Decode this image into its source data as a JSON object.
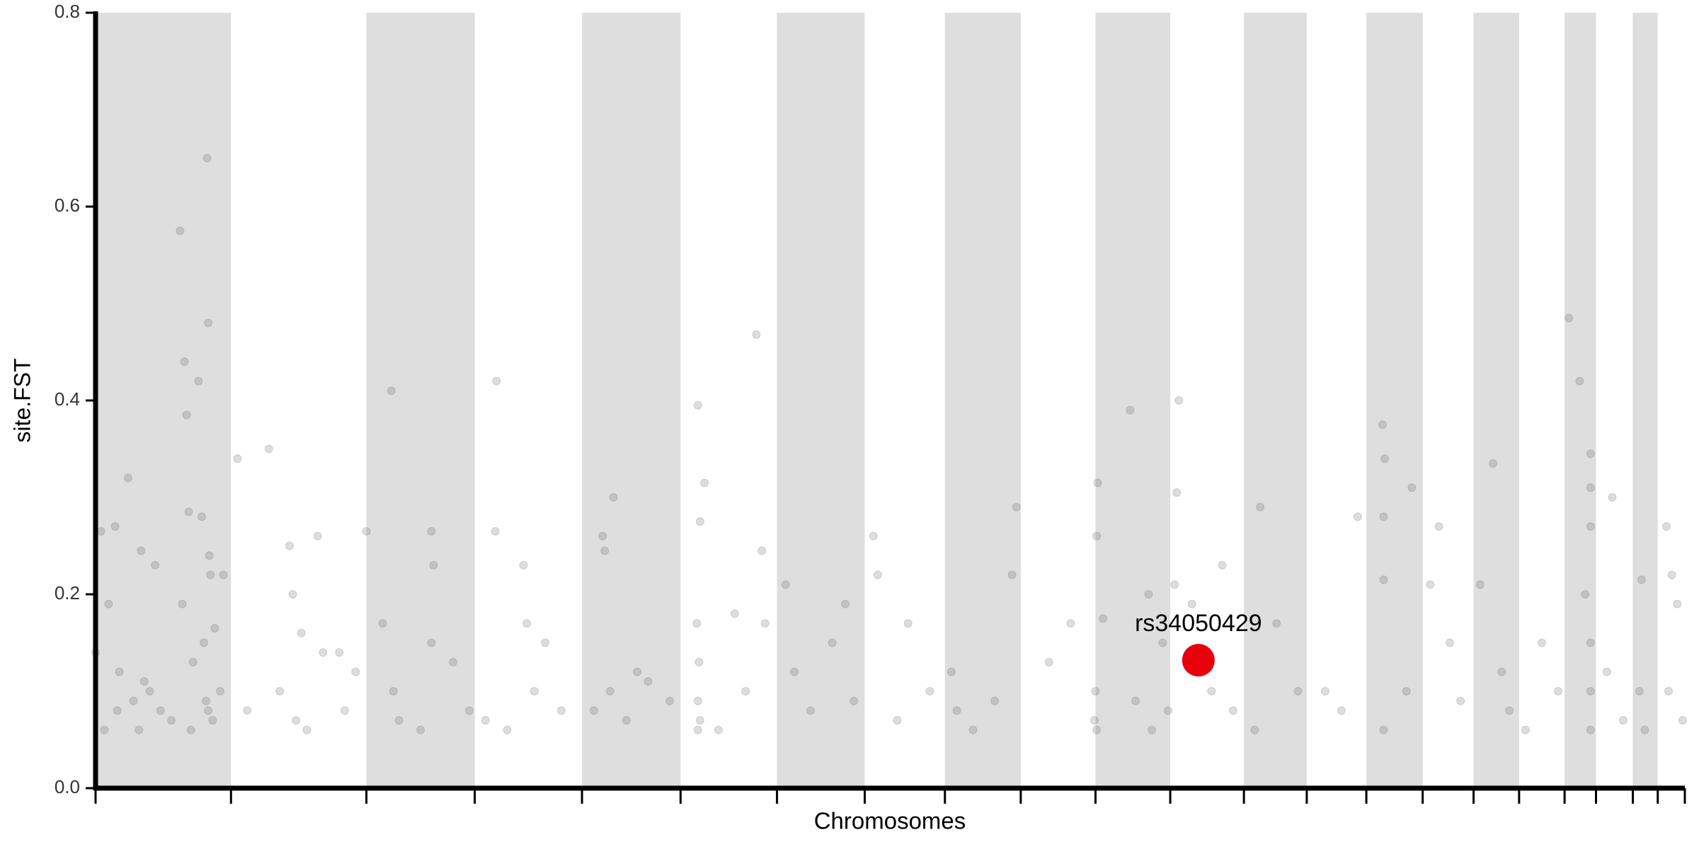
{
  "chart_data": {
    "type": "scatter",
    "y_label": "site.FST",
    "x_label": "Chromosomes",
    "ylim": [
      0,
      0.8
    ],
    "yticks": [
      {
        "value": 0,
        "label": "0.0"
      },
      0.2,
      0.4,
      0.6,
      0.8
    ],
    "xlim": [
      0,
      1467
    ],
    "xticks": [
      0,
      125,
      250,
      350,
      449,
      540,
      629,
      710,
      784,
      854,
      923,
      992,
      1060,
      1118,
      1173,
      1225,
      1272,
      1314,
      1356,
      1385,
      1419,
      1442,
      1467
    ],
    "band_color": "#dedede",
    "color": "#555555",
    "point_opacity": 0.2,
    "x": [
      0,
      5,
      8,
      12,
      18,
      22,
      30,
      35,
      42,
      45,
      55,
      60,
      78,
      80,
      82,
      84,
      86,
      90,
      95,
      98,
      100,
      103,
      104,
      105,
      106,
      108,
      110,
      115,
      118,
      20,
      40,
      50,
      70,
      88,
      102,
      104,
      131,
      160,
      179,
      182,
      185,
      190,
      205,
      210,
      225,
      140,
      170,
      195,
      230,
      240,
      250,
      265,
      273,
      275,
      310,
      312,
      310,
      280,
      300,
      330,
      345,
      370,
      369,
      380,
      395,
      398,
      405,
      430,
      360,
      415,
      468,
      478,
      470,
      475,
      460,
      490,
      510,
      530,
      500,
      556,
      558,
      562,
      555,
      557,
      556,
      558,
      556,
      575,
      590,
      610,
      615,
      618,
      600,
      637,
      660,
      680,
      700,
      645,
      692,
      718,
      722,
      750,
      740,
      770,
      790,
      795,
      830,
      850,
      846,
      810,
      880,
      900,
      925,
      924,
      923,
      922,
      924,
      930,
      955,
      972,
      985,
      960,
      975,
      990,
      1000,
      998,
      996,
      1012,
      1030,
      1040,
      1050,
      1075,
      1090,
      1110,
      1070,
      1135,
      1150,
      1165,
      1188,
      1190,
      1189,
      1189,
      1189,
      1210,
      1215,
      1232,
      1240,
      1250,
      1260,
      1278,
      1290,
      1298,
      1305,
      1335,
      1350,
      1320,
      1360,
      1370,
      1380,
      1380,
      1380,
      1380,
      1380,
      1380,
      1375,
      1400,
      1395,
      1410,
      1427,
      1425,
      1430,
      1450,
      1455,
      1460,
      1452,
      1465
    ],
    "values": [
      0.14,
      0.265,
      0.06,
      0.19,
      0.27,
      0.12,
      0.32,
      0.09,
      0.245,
      0.11,
      0.23,
      0.08,
      0.575,
      0.19,
      0.44,
      0.385,
      0.285,
      0.13,
      0.42,
      0.28,
      0.15,
      0.65,
      0.48,
      0.24,
      0.22,
      0.07,
      0.165,
      0.1,
      0.22,
      0.08,
      0.06,
      0.1,
      0.07,
      0.06,
      0.09,
      0.08,
      0.34,
      0.35,
      0.25,
      0.2,
      0.07,
      0.16,
      0.26,
      0.14,
      0.14,
      0.08,
      0.1,
      0.06,
      0.08,
      0.12,
      0.265,
      0.17,
      0.41,
      0.1,
      0.265,
      0.23,
      0.15,
      0.07,
      0.06,
      0.13,
      0.08,
      0.42,
      0.265,
      0.06,
      0.23,
      0.17,
      0.1,
      0.08,
      0.07,
      0.15,
      0.26,
      0.3,
      0.245,
      0.1,
      0.08,
      0.07,
      0.11,
      0.09,
      0.12,
      0.395,
      0.275,
      0.315,
      0.17,
      0.13,
      0.09,
      0.07,
      0.06,
      0.06,
      0.18,
      0.468,
      0.245,
      0.17,
      0.1,
      0.21,
      0.08,
      0.15,
      0.09,
      0.12,
      0.19,
      0.26,
      0.22,
      0.17,
      0.07,
      0.1,
      0.12,
      0.08,
      0.09,
      0.29,
      0.22,
      0.06,
      0.13,
      0.17,
      0.315,
      0.26,
      0.1,
      0.07,
      0.06,
      0.175,
      0.39,
      0.2,
      0.15,
      0.09,
      0.06,
      0.08,
      0.4,
      0.305,
      0.21,
      0.19,
      0.1,
      0.23,
      0.08,
      0.29,
      0.17,
      0.1,
      0.06,
      0.1,
      0.08,
      0.28,
      0.375,
      0.34,
      0.28,
      0.215,
      0.06,
      0.1,
      0.31,
      0.21,
      0.27,
      0.15,
      0.09,
      0.21,
      0.335,
      0.12,
      0.08,
      0.15,
      0.1,
      0.06,
      0.485,
      0.42,
      0.345,
      0.31,
      0.27,
      0.15,
      0.1,
      0.06,
      0.2,
      0.3,
      0.12,
      0.07,
      0.215,
      0.1,
      0.06,
      0.27,
      0.22,
      0.19,
      0.1,
      0.07
    ],
    "highlight": {
      "label": "rs34050429",
      "x": 1018,
      "value": 0.132,
      "color": "#e8000b"
    }
  }
}
